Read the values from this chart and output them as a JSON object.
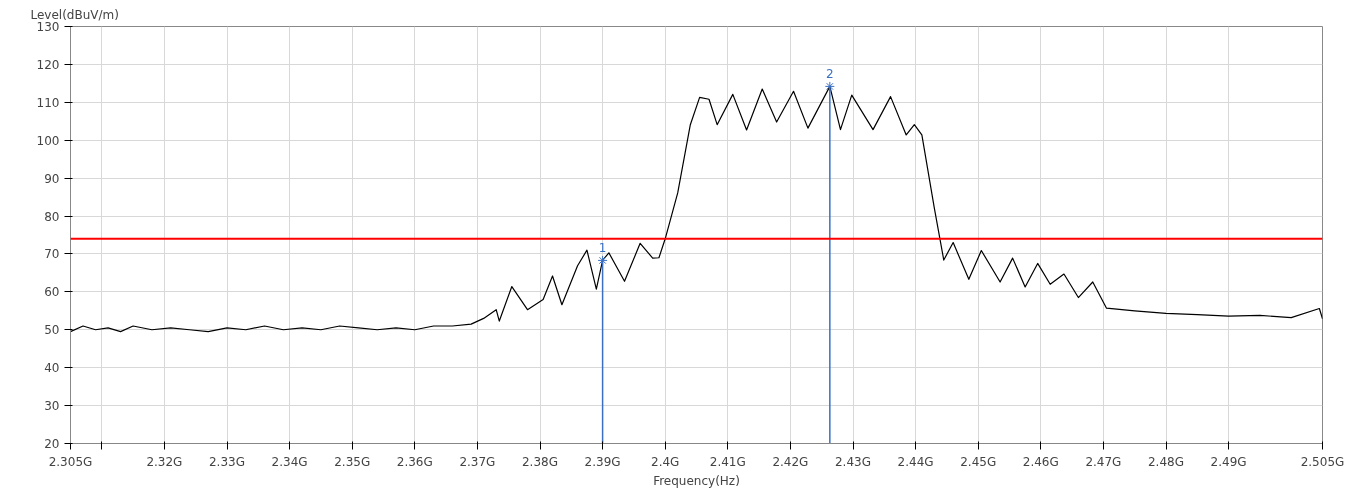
{
  "chart_data": {
    "type": "line",
    "xlabel": "Frequency(Hz)",
    "ylabel": "Level(dBuV/m)",
    "xlim": [
      2.305,
      2.505
    ],
    "ylim": [
      20,
      130
    ],
    "xticks": [
      {
        "value": 2.305,
        "label": "2.305G"
      },
      {
        "value": 2.31,
        "label": null
      },
      {
        "value": 2.32,
        "label": "2.32G"
      },
      {
        "value": 2.33,
        "label": "2.33G"
      },
      {
        "value": 2.34,
        "label": "2.34G"
      },
      {
        "value": 2.35,
        "label": "2.35G"
      },
      {
        "value": 2.36,
        "label": "2.36G"
      },
      {
        "value": 2.37,
        "label": "2.37G"
      },
      {
        "value": 2.38,
        "label": "2.38G"
      },
      {
        "value": 2.39,
        "label": "2.39G"
      },
      {
        "value": 2.4,
        "label": "2.4G"
      },
      {
        "value": 2.41,
        "label": "2.41G"
      },
      {
        "value": 2.42,
        "label": "2.42G"
      },
      {
        "value": 2.43,
        "label": "2.43G"
      },
      {
        "value": 2.44,
        "label": "2.44G"
      },
      {
        "value": 2.45,
        "label": "2.45G"
      },
      {
        "value": 2.46,
        "label": "2.46G"
      },
      {
        "value": 2.47,
        "label": "2.47G"
      },
      {
        "value": 2.48,
        "label": "2.48G"
      },
      {
        "value": 2.49,
        "label": "2.49G"
      },
      {
        "value": 2.505,
        "label": "2.505G"
      }
    ],
    "yticks": [
      20,
      30,
      40,
      50,
      60,
      70,
      80,
      90,
      100,
      110,
      120,
      130
    ],
    "grid": true,
    "marker": "none",
    "line_style": "solid",
    "series": [
      {
        "color": "#000000",
        "x": [
          2.305,
          2.307,
          2.309,
          2.311,
          2.313,
          2.315,
          2.318,
          2.321,
          2.324,
          2.327,
          2.33,
          2.333,
          2.336,
          2.339,
          2.342,
          2.345,
          2.348,
          2.351,
          2.354,
          2.357,
          2.36,
          2.363,
          2.366,
          2.369,
          2.371,
          2.373,
          2.3735,
          2.3755,
          2.378,
          2.3805,
          2.382,
          2.3835,
          2.386,
          2.3875,
          2.389,
          2.39,
          2.391,
          2.3935,
          2.396,
          2.398,
          2.399,
          2.4,
          2.402,
          2.404,
          2.4055,
          2.407,
          2.4083,
          2.4108,
          2.413,
          2.4155,
          2.4178,
          2.4205,
          2.4228,
          2.4263,
          2.428,
          2.4298,
          2.4332,
          2.436,
          2.4385,
          2.4398,
          2.441,
          2.443,
          2.4445,
          2.446,
          2.4485,
          2.4505,
          2.4535,
          2.4555,
          2.4575,
          2.4595,
          2.4615,
          2.4637,
          2.466,
          2.4683,
          2.4705,
          2.475,
          2.48,
          2.485,
          2.49,
          2.495,
          2.5,
          2.5045,
          2.505
        ],
        "values": [
          49.5,
          51,
          50,
          50.5,
          49.5,
          51,
          50,
          50.5,
          50,
          49.5,
          50.5,
          50,
          51,
          50,
          50.5,
          50,
          51,
          50.5,
          50,
          50.5,
          50,
          51,
          51,
          51.5,
          53,
          55.3,
          52.3,
          61.4,
          55.3,
          58,
          64.2,
          56.6,
          66.9,
          71,
          60.7,
          68.3,
          70.3,
          62.8,
          72.8,
          68.9,
          69,
          74,
          86.1,
          104,
          111.3,
          110.8,
          104.1,
          112.1,
          102.7,
          113.5,
          104.8,
          112.9,
          103.2,
          114.2,
          102.8,
          111.9,
          102.8,
          111.5,
          101.4,
          104.1,
          101.4,
          82,
          68.4,
          73,
          63.3,
          70.9,
          62.6,
          68.9,
          61.3,
          67.5,
          62,
          64.7,
          58.5,
          62.6,
          55.7,
          55,
          54.3,
          54,
          53.6,
          53.8,
          53.2,
          55.6,
          52.9
        ]
      }
    ],
    "ref_lines": [
      {
        "axis": "y",
        "value": 74,
        "color": "#ff0000"
      },
      {
        "axis": "x",
        "value": 2.39,
        "color": "#3a6fc4"
      },
      {
        "axis": "x",
        "value": 2.4263,
        "color": "#3a6fc4"
      }
    ],
    "annotations": [
      {
        "text": "1",
        "x": 2.39,
        "y": 68.3
      },
      {
        "text": "2",
        "x": 2.4263,
        "y": 114.2
      }
    ]
  }
}
